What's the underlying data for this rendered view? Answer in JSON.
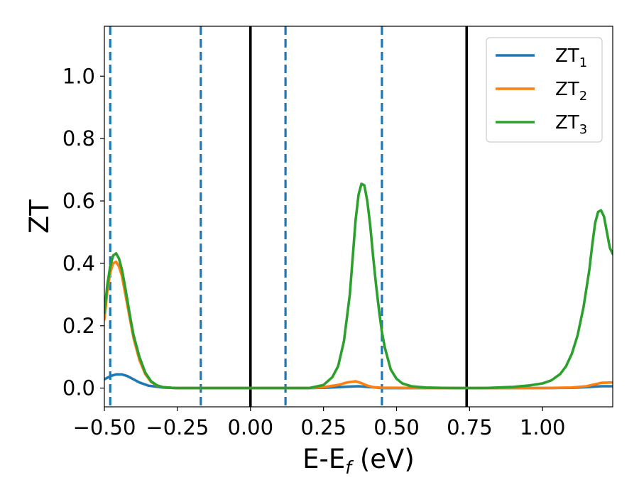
{
  "chart_data": {
    "type": "line",
    "xlabel": "E-E$_f$ (eV)",
    "xlabel_parts": {
      "main": "E-E",
      "sub": "f",
      "suffix": " (eV)"
    },
    "ylabel": "ZT",
    "xlim": [
      -0.5,
      1.24
    ],
    "ylim": [
      -0.06,
      1.16
    ],
    "x_ticks": [
      -0.5,
      -0.25,
      0.0,
      0.25,
      0.5,
      0.75,
      1.0
    ],
    "x_tick_labels": [
      "−0.50",
      "−0.25",
      "0.00",
      "0.25",
      "0.50",
      "0.75",
      "1.00"
    ],
    "y_ticks": [
      0.0,
      0.2,
      0.4,
      0.6,
      0.8,
      1.0
    ],
    "y_tick_labels": [
      "0.0",
      "0.2",
      "0.4",
      "0.6",
      "0.8",
      "1.0"
    ],
    "grid": false,
    "legend_position": "top-right",
    "series": [
      {
        "name": "ZT_1",
        "label_main": "ZT",
        "label_sub": "1",
        "color": "#1f77b4",
        "x": [
          -0.5,
          -0.48,
          -0.46,
          -0.44,
          -0.42,
          -0.4,
          -0.38,
          -0.35,
          -0.3,
          -0.25,
          -0.2,
          0.0,
          0.2,
          0.25,
          0.3,
          0.34,
          0.37,
          0.4,
          0.43,
          0.45,
          0.5,
          0.7,
          1.0,
          1.1,
          1.15,
          1.2,
          1.24
        ],
        "y": [
          0.028,
          0.038,
          0.044,
          0.044,
          0.038,
          0.028,
          0.018,
          0.008,
          0.002,
          0.0,
          0.0,
          0.0,
          0.0,
          0.001,
          0.003,
          0.005,
          0.006,
          0.004,
          0.002,
          0.0,
          0.0,
          0.0,
          0.0,
          0.001,
          0.003,
          0.006,
          0.006
        ]
      },
      {
        "name": "ZT_2",
        "label_main": "ZT",
        "label_sub": "2",
        "color": "#ff7f0e",
        "x": [
          -0.5,
          -0.49,
          -0.48,
          -0.47,
          -0.46,
          -0.45,
          -0.44,
          -0.43,
          -0.42,
          -0.41,
          -0.4,
          -0.38,
          -0.36,
          -0.34,
          -0.32,
          -0.3,
          -0.27,
          -0.25,
          -0.2,
          0.0,
          0.2,
          0.25,
          0.3,
          0.33,
          0.36,
          0.38,
          0.4,
          0.42,
          0.45,
          0.5,
          0.6,
          0.8,
          1.0,
          1.1,
          1.15,
          1.2,
          1.24
        ],
        "y": [
          0.22,
          0.31,
          0.37,
          0.4,
          0.405,
          0.39,
          0.36,
          0.31,
          0.26,
          0.21,
          0.16,
          0.09,
          0.045,
          0.02,
          0.008,
          0.003,
          0.001,
          0.0,
          0.0,
          0.0,
          0.0,
          0.003,
          0.01,
          0.018,
          0.022,
          0.016,
          0.008,
          0.003,
          0.001,
          0.001,
          0.0,
          0.0,
          0.0,
          0.002,
          0.006,
          0.017,
          0.018
        ]
      },
      {
        "name": "ZT_3",
        "label_main": "ZT",
        "label_sub": "3",
        "color": "#2ca02c",
        "x": [
          -0.5,
          -0.49,
          -0.48,
          -0.47,
          -0.46,
          -0.45,
          -0.44,
          -0.43,
          -0.42,
          -0.41,
          -0.4,
          -0.38,
          -0.36,
          -0.34,
          -0.32,
          -0.3,
          -0.27,
          -0.25,
          -0.2,
          0.0,
          0.2,
          0.25,
          0.28,
          0.3,
          0.32,
          0.34,
          0.35,
          0.36,
          0.37,
          0.38,
          0.39,
          0.4,
          0.41,
          0.42,
          0.43,
          0.44,
          0.45,
          0.46,
          0.48,
          0.5,
          0.52,
          0.55,
          0.6,
          0.7,
          0.8,
          0.9,
          0.95,
          1.0,
          1.03,
          1.06,
          1.08,
          1.1,
          1.12,
          1.14,
          1.16,
          1.17,
          1.18,
          1.19,
          1.2,
          1.21,
          1.22,
          1.23,
          1.24
        ],
        "y": [
          0.24,
          0.33,
          0.39,
          0.425,
          0.432,
          0.415,
          0.38,
          0.33,
          0.275,
          0.22,
          0.17,
          0.1,
          0.05,
          0.022,
          0.009,
          0.003,
          0.001,
          0.0,
          0.0,
          0.0,
          0.0,
          0.01,
          0.035,
          0.07,
          0.15,
          0.3,
          0.42,
          0.54,
          0.62,
          0.655,
          0.65,
          0.6,
          0.52,
          0.42,
          0.33,
          0.25,
          0.18,
          0.13,
          0.06,
          0.03,
          0.015,
          0.006,
          0.002,
          0.0,
          0.0,
          0.004,
          0.008,
          0.015,
          0.025,
          0.045,
          0.07,
          0.11,
          0.17,
          0.26,
          0.38,
          0.46,
          0.53,
          0.565,
          0.57,
          0.55,
          0.5,
          0.45,
          0.43
        ]
      }
    ],
    "vertical_lines": [
      {
        "x": -0.48,
        "style": "dashed",
        "color": "#1f77b4"
      },
      {
        "x": -0.17,
        "style": "dashed",
        "color": "#1f77b4"
      },
      {
        "x": 0.0,
        "style": "solid",
        "color": "#000000"
      },
      {
        "x": 0.12,
        "style": "dashed",
        "color": "#1f77b4"
      },
      {
        "x": 0.45,
        "style": "dashed",
        "color": "#1f77b4"
      },
      {
        "x": 0.74,
        "style": "solid",
        "color": "#000000"
      }
    ]
  }
}
